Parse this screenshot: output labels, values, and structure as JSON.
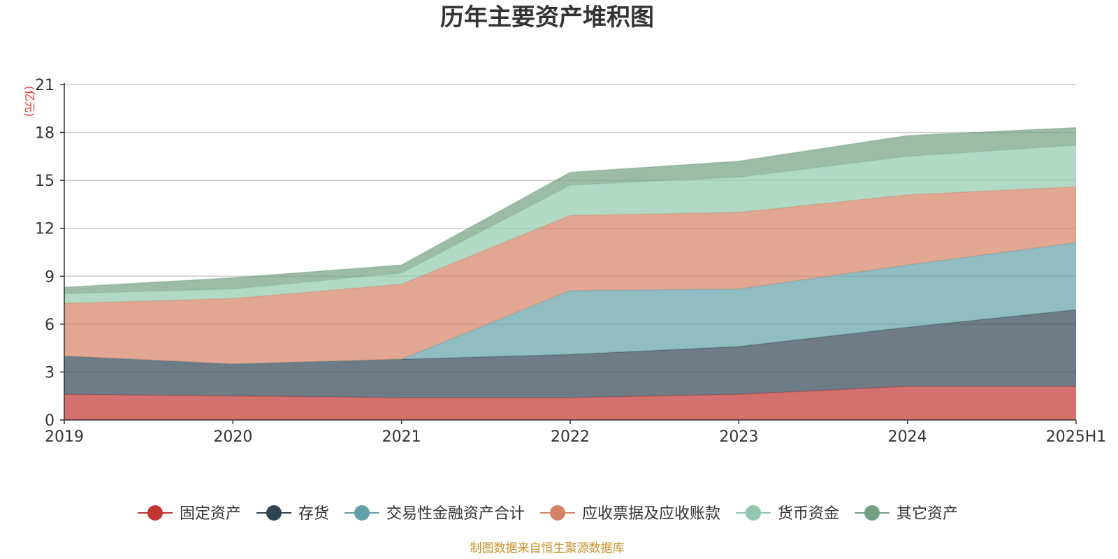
{
  "chart_data": {
    "type": "area",
    "stacked": true,
    "title": "历年主要资产堆积图",
    "unit_label": "(亿元)",
    "source_note": "制图数据来自恒生聚源数据库",
    "categories": [
      "2019",
      "2020",
      "2021",
      "2022",
      "2023",
      "2024",
      "2025H1"
    ],
    "ylim": [
      0,
      21
    ],
    "yticks": [
      "0",
      "3",
      "6",
      "9",
      "12",
      "15",
      "18",
      "21"
    ],
    "grid": true,
    "legend_position": "bottom",
    "series": [
      {
        "name": "固定资产",
        "color": "#c23531",
        "values": [
          1.6,
          1.5,
          1.4,
          1.4,
          1.6,
          2.1,
          2.1
        ]
      },
      {
        "name": "存货",
        "color": "#2f4554",
        "values": [
          2.4,
          2.0,
          2.4,
          2.7,
          3.0,
          3.7,
          4.8
        ]
      },
      {
        "name": "交易性金融资产合计",
        "color": "#61a0a8",
        "values": [
          0,
          0,
          0,
          4.0,
          3.6,
          3.9,
          4.2
        ]
      },
      {
        "name": "应收票据及应收账款",
        "color": "#d48265",
        "values": [
          3.3,
          4.1,
          4.7,
          4.7,
          4.8,
          4.4,
          3.5
        ]
      },
      {
        "name": "货币资金",
        "color": "#91c7ae",
        "values": [
          0.6,
          0.6,
          0.7,
          1.9,
          2.2,
          2.4,
          2.6
        ]
      },
      {
        "name": "其它资产",
        "color": "#749f83",
        "values": [
          0.4,
          0.7,
          0.5,
          0.8,
          1.0,
          1.3,
          1.1
        ]
      }
    ]
  }
}
